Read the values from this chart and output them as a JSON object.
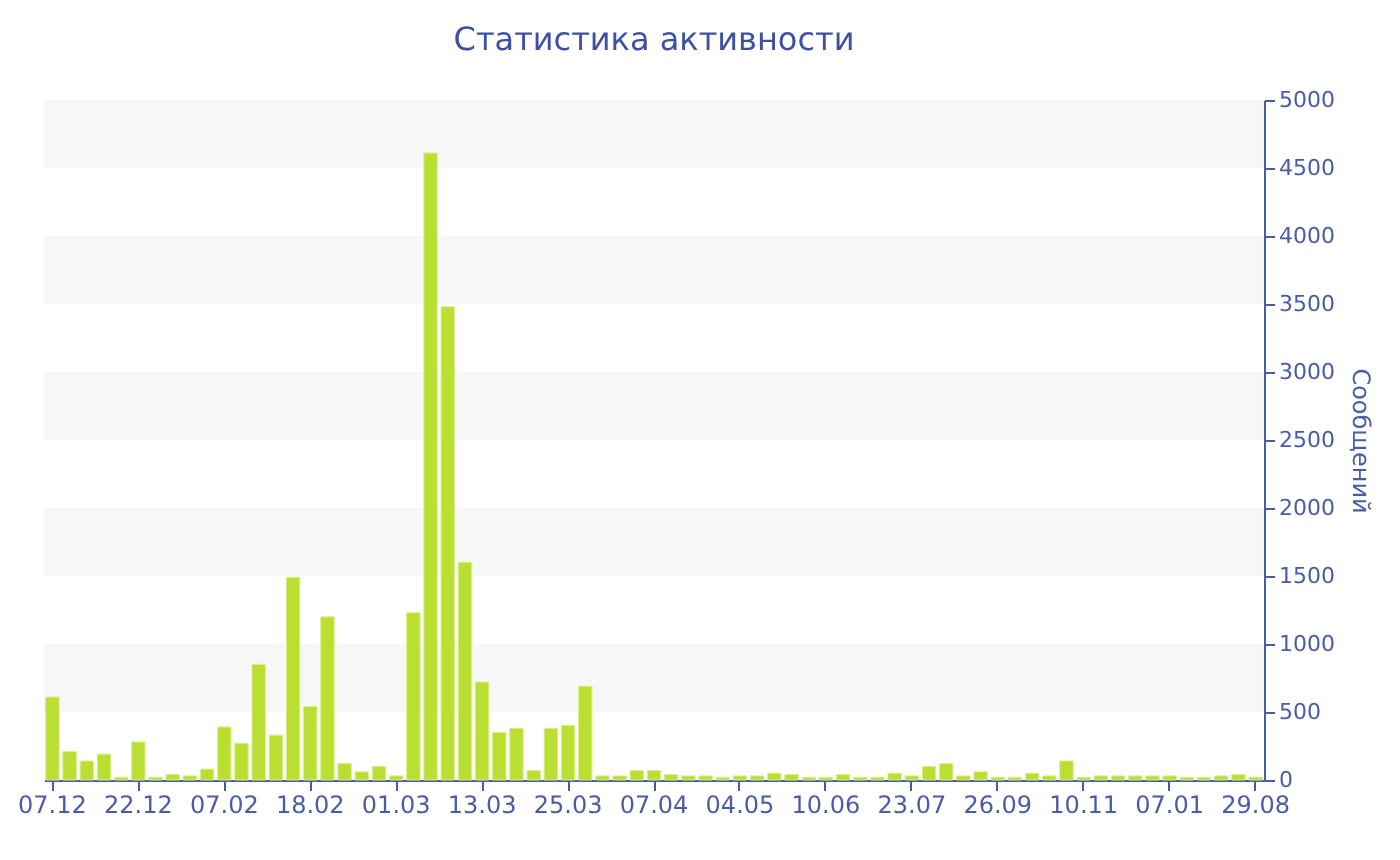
{
  "chart_data": {
    "type": "bar",
    "title": "Статистика активности",
    "ylabel": "Сообщений",
    "categories": [
      "07.12",
      null,
      null,
      null,
      null,
      "22.12",
      null,
      null,
      null,
      null,
      "07.02",
      null,
      null,
      null,
      null,
      "18.02",
      null,
      null,
      null,
      null,
      "01.03",
      null,
      null,
      null,
      null,
      "13.03",
      null,
      null,
      null,
      null,
      "25.03",
      null,
      null,
      null,
      null,
      "07.04",
      null,
      null,
      null,
      null,
      "04.05",
      null,
      null,
      null,
      null,
      "10.06",
      null,
      null,
      null,
      null,
      "23.07",
      null,
      null,
      null,
      null,
      "26.09",
      null,
      null,
      null,
      null,
      "10.11",
      null,
      null,
      null,
      null,
      "07.01",
      null,
      null,
      null,
      null,
      "29.08"
    ],
    "values": [
      610,
      210,
      140,
      190,
      20,
      280,
      20,
      40,
      30,
      80,
      390,
      270,
      850,
      330,
      1490,
      540,
      1200,
      120,
      60,
      100,
      30,
      1230,
      4610,
      3480,
      1600,
      720,
      350,
      380,
      70,
      380,
      400,
      690,
      30,
      30,
      70,
      70,
      40,
      30,
      30,
      20,
      30,
      30,
      50,
      40,
      20,
      20,
      40,
      20,
      20,
      50,
      30,
      100,
      120,
      30,
      60,
      20,
      20,
      50,
      30,
      140,
      20,
      30,
      30,
      30,
      30,
      30,
      20,
      20,
      30,
      40,
      20
    ],
    "color": "#bade32",
    "ylim": [
      0,
      5000
    ],
    "yticks": [
      0,
      500,
      1000,
      1500,
      2000,
      2500,
      3000,
      3500,
      4000,
      4500,
      5000
    ],
    "bands": [
      {
        "axis": "y",
        "from": 500,
        "to": 1000,
        "color": "#f7f7f7"
      },
      {
        "axis": "y",
        "from": 1500,
        "to": 2000,
        "color": "#f7f7f7"
      },
      {
        "axis": "y",
        "from": 2500,
        "to": 3000,
        "color": "#f7f7f7"
      },
      {
        "axis": "y",
        "from": 3500,
        "to": 4000,
        "color": "#f7f7f7"
      },
      {
        "axis": "y",
        "from": 4500,
        "to": 5000,
        "color": "#f7f7f7"
      }
    ],
    "grid": false
  }
}
